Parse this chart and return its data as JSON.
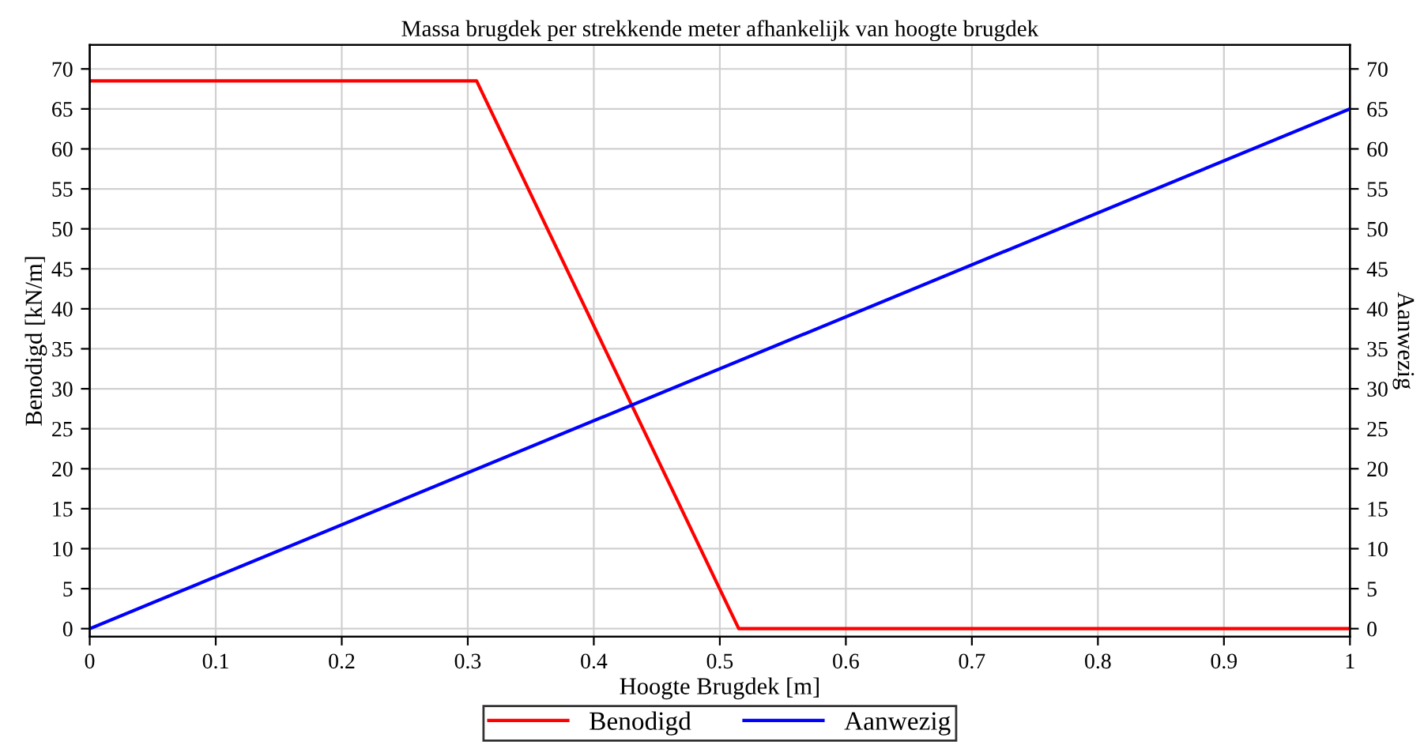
{
  "chart_data": {
    "type": "line",
    "title": "Massa brugdek per strekkende meter afhankelijk van hoogte brugdek",
    "xlabel": "Hoogte Brugdek [m]",
    "ylabel": "Benodigd [kN/m]",
    "y2label": "Aanwezig",
    "series": [
      {
        "name": "Benodigd",
        "color": "#ff0000",
        "x": [
          0,
          0.307,
          0.515,
          1
        ],
        "values": [
          68.5,
          68.5,
          0,
          0
        ]
      },
      {
        "name": "Aanwezig",
        "color": "#0000ff",
        "axis": "y2",
        "x": [
          0,
          1
        ],
        "values": [
          0,
          65
        ]
      }
    ],
    "xlim": [
      0,
      1
    ],
    "xticks": [
      0,
      0.1,
      0.2,
      0.3,
      0.4,
      0.5,
      0.6,
      0.7,
      0.8,
      0.9,
      1
    ],
    "ylim": [
      -1,
      73
    ],
    "yticks": [
      0,
      5,
      10,
      15,
      20,
      25,
      30,
      35,
      40,
      45,
      50,
      55,
      60,
      65,
      70
    ],
    "y2lim": [
      -1,
      73
    ],
    "y2ticks": [
      0,
      5,
      10,
      15,
      20,
      25,
      30,
      35,
      40,
      45,
      50,
      55,
      60,
      65,
      70
    ],
    "grid": true,
    "legend": "bottom",
    "marker": "none",
    "line_style": "solid"
  }
}
